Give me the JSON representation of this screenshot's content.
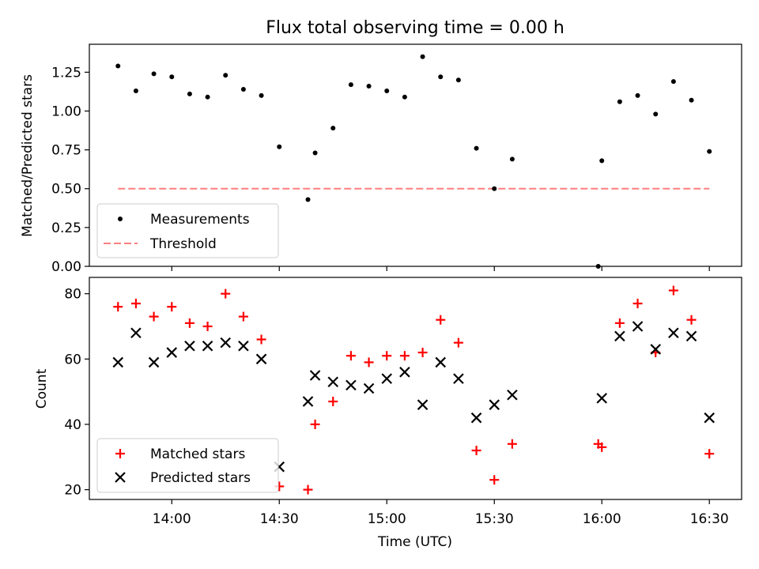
{
  "chart_data": [
    {
      "type": "scatter",
      "title": "Flux total observing time = 0.00 h",
      "xlabel": "",
      "ylabel": "Matched/Predicted stars",
      "ylim": [
        0.0,
        1.43
      ],
      "yticks": [
        "0.00",
        "0.25",
        "0.50",
        "0.75",
        "1.00",
        "1.25"
      ],
      "legend_position": "lower-left",
      "series": [
        {
          "name": "Measurements",
          "marker": "dot",
          "color": "#000000",
          "x": [
            "13:45",
            "13:50",
            "13:55",
            "14:00",
            "14:05",
            "14:10",
            "14:15",
            "14:20",
            "14:25",
            "14:30",
            "14:38",
            "14:40",
            "14:45",
            "14:50",
            "14:55",
            "15:00",
            "15:05",
            "15:10",
            "15:15",
            "15:20",
            "15:25",
            "15:30",
            "15:35",
            "15:59",
            "16:00",
            "16:05",
            "16:10",
            "16:15",
            "16:20",
            "16:25",
            "16:30"
          ],
          "y": [
            1.29,
            1.13,
            1.24,
            1.22,
            1.11,
            1.09,
            1.23,
            1.14,
            1.1,
            0.77,
            0.43,
            0.73,
            0.89,
            1.17,
            1.16,
            1.13,
            1.09,
            1.35,
            1.22,
            1.2,
            0.76,
            0.5,
            0.69,
            0.0,
            0.68,
            1.06,
            1.1,
            0.98,
            1.19,
            1.07,
            0.74
          ]
        },
        {
          "name": "Threshold",
          "marker": "dashed-line",
          "color": "#ff7f7f",
          "x": [
            "13:45",
            "16:30"
          ],
          "y": [
            0.5,
            0.5
          ]
        }
      ]
    },
    {
      "type": "scatter",
      "title": "",
      "xlabel": "Time (UTC)",
      "ylabel": "Count",
      "xlim": [
        "13:37",
        "16:39"
      ],
      "xticks": [
        "14:00",
        "14:30",
        "15:00",
        "15:30",
        "16:00",
        "16:30"
      ],
      "ylim": [
        17,
        85
      ],
      "yticks": [
        "20",
        "40",
        "60",
        "80"
      ],
      "legend_position": "lower-left",
      "series": [
        {
          "name": "Matched stars",
          "marker": "plus",
          "color": "#ff0000",
          "x": [
            "13:45",
            "13:50",
            "13:55",
            "14:00",
            "14:05",
            "14:10",
            "14:15",
            "14:20",
            "14:25",
            "14:30",
            "14:38",
            "14:40",
            "14:45",
            "14:50",
            "14:55",
            "15:00",
            "15:05",
            "15:10",
            "15:15",
            "15:20",
            "15:25",
            "15:30",
            "15:35",
            "15:59",
            "16:00",
            "16:05",
            "16:10",
            "16:15",
            "16:20",
            "16:25",
            "16:30"
          ],
          "y": [
            76,
            77,
            73,
            76,
            71,
            70,
            80,
            73,
            66,
            21,
            20,
            40,
            47,
            61,
            59,
            61,
            61,
            62,
            72,
            65,
            32,
            23,
            34,
            34,
            33,
            71,
            77,
            62,
            81,
            72,
            31
          ]
        },
        {
          "name": "Predicted stars",
          "marker": "x",
          "color": "#000000",
          "x": [
            "13:45",
            "13:50",
            "13:55",
            "14:00",
            "14:05",
            "14:10",
            "14:15",
            "14:20",
            "14:25",
            "14:30",
            "14:38",
            "14:40",
            "14:45",
            "14:50",
            "14:55",
            "15:00",
            "15:05",
            "15:10",
            "15:15",
            "15:20",
            "15:25",
            "15:30",
            "15:35",
            "16:00",
            "16:05",
            "16:10",
            "16:15",
            "16:20",
            "16:25",
            "16:30"
          ],
          "y": [
            59,
            68,
            59,
            62,
            64,
            64,
            65,
            64,
            60,
            27,
            47,
            55,
            53,
            52,
            51,
            54,
            56,
            46,
            59,
            54,
            42,
            46,
            49,
            48,
            67,
            70,
            63,
            68,
            67,
            42
          ]
        }
      ]
    }
  ]
}
